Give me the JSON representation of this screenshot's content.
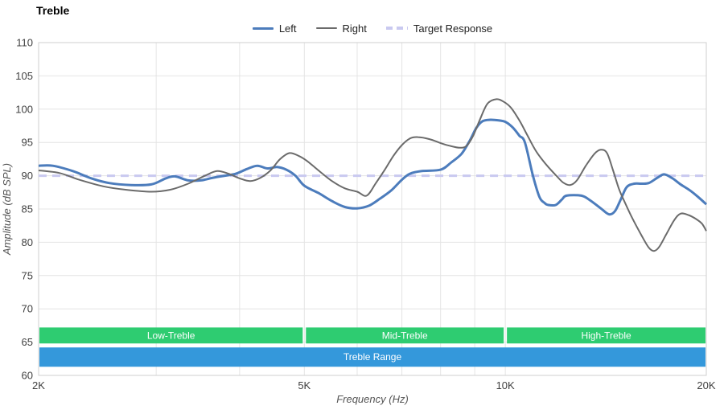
{
  "chart_data": {
    "type": "line",
    "title": "Treble",
    "xlabel": "Frequency (Hz)",
    "ylabel": "Amplitude (dB SPL)",
    "x_scale": "log",
    "xlim": [
      2000,
      20000
    ],
    "ylim": [
      60,
      110
    ],
    "grid_color": "#e4e4e4",
    "frame_color": "#cfcfcf",
    "y_ticks": [
      110,
      105,
      100,
      95,
      90,
      85,
      80,
      75,
      70,
      65,
      60
    ],
    "x_ticks": [
      {
        "value": 2000,
        "label": "2K"
      },
      {
        "value": 5000,
        "label": "5K"
      },
      {
        "value": 10000,
        "label": "10K"
      },
      {
        "value": 20000,
        "label": "20K"
      }
    ],
    "x_gridlines": [
      3000,
      4000,
      5000,
      6000,
      7000,
      8000,
      9000,
      10000
    ],
    "legend_position": "top",
    "series": [
      {
        "name": "Left",
        "color": "#4c7cbc",
        "width": 3,
        "dash": null,
        "points": [
          [
            2000,
            91.5
          ],
          [
            2100,
            91.5
          ],
          [
            2250,
            90.7
          ],
          [
            2400,
            89.6
          ],
          [
            2550,
            88.9
          ],
          [
            2750,
            88.6
          ],
          [
            2950,
            88.7
          ],
          [
            3100,
            89.6
          ],
          [
            3200,
            89.9
          ],
          [
            3350,
            89.3
          ],
          [
            3500,
            89.3
          ],
          [
            3650,
            89.7
          ],
          [
            3800,
            90.0
          ],
          [
            3950,
            90.3
          ],
          [
            4100,
            91.0
          ],
          [
            4250,
            91.5
          ],
          [
            4400,
            91.1
          ],
          [
            4550,
            91.3
          ],
          [
            4700,
            90.9
          ],
          [
            4850,
            90.0
          ],
          [
            5000,
            88.5
          ],
          [
            5250,
            87.4
          ],
          [
            5500,
            86.2
          ],
          [
            5750,
            85.3
          ],
          [
            6000,
            85.1
          ],
          [
            6250,
            85.5
          ],
          [
            6500,
            86.6
          ],
          [
            6750,
            87.8
          ],
          [
            7000,
            89.4
          ],
          [
            7200,
            90.3
          ],
          [
            7500,
            90.7
          ],
          [
            8000,
            90.9
          ],
          [
            8300,
            92.0
          ],
          [
            8600,
            93.3
          ],
          [
            8850,
            95.3
          ],
          [
            9050,
            97.2
          ],
          [
            9250,
            98.2
          ],
          [
            9500,
            98.4
          ],
          [
            9800,
            98.3
          ],
          [
            10000,
            98.1
          ],
          [
            10250,
            97.3
          ],
          [
            10500,
            96.0
          ],
          [
            10700,
            95.0
          ],
          [
            11000,
            90.0
          ],
          [
            11250,
            86.8
          ],
          [
            11450,
            85.9
          ],
          [
            11600,
            85.6
          ],
          [
            11900,
            85.6
          ],
          [
            12150,
            86.4
          ],
          [
            12350,
            87.0
          ],
          [
            13000,
            87.0
          ],
          [
            13400,
            86.3
          ],
          [
            13900,
            85.1
          ],
          [
            14300,
            84.2
          ],
          [
            14600,
            84.7
          ],
          [
            14900,
            86.5
          ],
          [
            15200,
            88.3
          ],
          [
            15600,
            88.8
          ],
          [
            16000,
            88.8
          ],
          [
            16400,
            88.9
          ],
          [
            16900,
            89.7
          ],
          [
            17300,
            90.2
          ],
          [
            17800,
            89.6
          ],
          [
            18300,
            88.7
          ],
          [
            18900,
            87.8
          ],
          [
            19400,
            86.9
          ],
          [
            20000,
            85.7
          ]
        ]
      },
      {
        "name": "Right",
        "color": "#6b6b6b",
        "width": 2,
        "dash": null,
        "points": [
          [
            2000,
            90.8
          ],
          [
            2150,
            90.4
          ],
          [
            2300,
            89.4
          ],
          [
            2500,
            88.4
          ],
          [
            2700,
            87.9
          ],
          [
            2950,
            87.6
          ],
          [
            3150,
            87.9
          ],
          [
            3350,
            88.8
          ],
          [
            3550,
            90.0
          ],
          [
            3700,
            90.7
          ],
          [
            3850,
            90.3
          ],
          [
            4000,
            89.6
          ],
          [
            4150,
            89.2
          ],
          [
            4300,
            89.7
          ],
          [
            4450,
            90.8
          ],
          [
            4600,
            92.5
          ],
          [
            4750,
            93.4
          ],
          [
            4900,
            93.0
          ],
          [
            5050,
            92.2
          ],
          [
            5250,
            90.8
          ],
          [
            5500,
            89.2
          ],
          [
            5750,
            88.1
          ],
          [
            6000,
            87.6
          ],
          [
            6200,
            87.0
          ],
          [
            6400,
            88.9
          ],
          [
            6600,
            90.9
          ],
          [
            6800,
            93.0
          ],
          [
            7000,
            94.6
          ],
          [
            7200,
            95.6
          ],
          [
            7400,
            95.8
          ],
          [
            7700,
            95.5
          ],
          [
            8000,
            94.9
          ],
          [
            8250,
            94.5
          ],
          [
            8550,
            94.2
          ],
          [
            8750,
            94.5
          ],
          [
            8950,
            96.0
          ],
          [
            9150,
            98.3
          ],
          [
            9400,
            100.8
          ],
          [
            9700,
            101.5
          ],
          [
            9950,
            101.1
          ],
          [
            10200,
            100.2
          ],
          [
            10500,
            98.3
          ],
          [
            10800,
            96.0
          ],
          [
            11100,
            93.8
          ],
          [
            11400,
            92.2
          ],
          [
            11600,
            91.3
          ],
          [
            11900,
            90.1
          ],
          [
            12200,
            89.0
          ],
          [
            12500,
            88.6
          ],
          [
            12800,
            89.3
          ],
          [
            13200,
            91.5
          ],
          [
            13600,
            93.3
          ],
          [
            13900,
            93.9
          ],
          [
            14200,
            93.4
          ],
          [
            14500,
            90.8
          ],
          [
            14800,
            88.0
          ],
          [
            15100,
            86.0
          ],
          [
            15500,
            83.6
          ],
          [
            16000,
            81.0
          ],
          [
            16400,
            79.2
          ],
          [
            16700,
            78.7
          ],
          [
            17000,
            79.3
          ],
          [
            17400,
            81.1
          ],
          [
            17900,
            83.3
          ],
          [
            18300,
            84.3
          ],
          [
            18800,
            84.1
          ],
          [
            19300,
            83.5
          ],
          [
            19700,
            82.8
          ],
          [
            20000,
            81.7
          ]
        ]
      },
      {
        "name": "Target Response",
        "color": "#c9c9f0",
        "width": 3,
        "dash": "10 7",
        "points": [
          [
            2000,
            90
          ],
          [
            20000,
            90
          ]
        ]
      }
    ],
    "bands": [
      {
        "label": "Low-Treble",
        "x_from": 2000,
        "x_to": 5000,
        "db_from": 64.8,
        "db_to": 67.2,
        "color": "#2ecc71"
      },
      {
        "label": "Mid-Treble",
        "x_from": 5000,
        "x_to": 10000,
        "db_from": 64.8,
        "db_to": 67.2,
        "color": "#2ecc71"
      },
      {
        "label": "High-Treble",
        "x_from": 10000,
        "x_to": 20000,
        "db_from": 64.8,
        "db_to": 67.2,
        "color": "#2ecc71"
      },
      {
        "label": "Treble Range",
        "x_from": 2000,
        "x_to": 20000,
        "db_from": 61.3,
        "db_to": 64.2,
        "color": "#3498db"
      }
    ]
  }
}
